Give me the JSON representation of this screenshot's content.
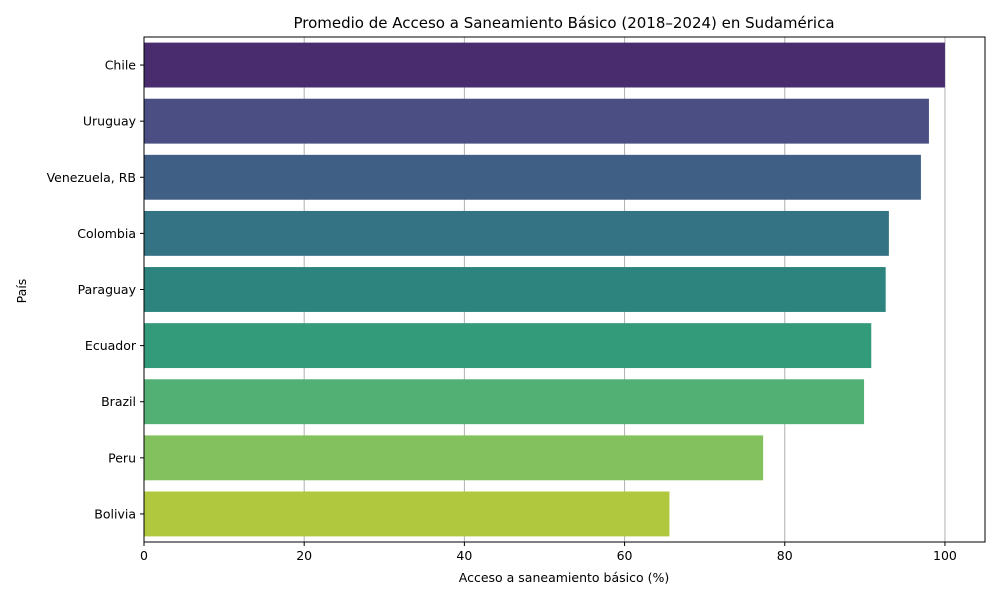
{
  "chart_data": {
    "type": "bar",
    "orientation": "horizontal",
    "title": "Promedio de Acceso a Saneamiento Básico (2018–2024) en Sudamérica",
    "xlabel": "Acceso a saneamiento básico (%)",
    "ylabel": "País",
    "xlim": [
      0,
      105
    ],
    "xticks": [
      "0",
      "20",
      "40",
      "60",
      "80",
      "100"
    ],
    "grid": "x",
    "categories": [
      "Chile",
      "Uruguay",
      "Venezuela, RB",
      "Colombia",
      "Paraguay",
      "Ecuador",
      "Brazil",
      "Peru",
      "Bolivia"
    ],
    "values": [
      100.0,
      98.0,
      97.0,
      93.0,
      92.6,
      90.8,
      89.9,
      77.3,
      65.6
    ],
    "colors": [
      "#482c6e",
      "#4a4e82",
      "#405f85",
      "#347383",
      "#2d847e",
      "#339a7a",
      "#53b074",
      "#83c15f",
      "#afc83d"
    ]
  }
}
